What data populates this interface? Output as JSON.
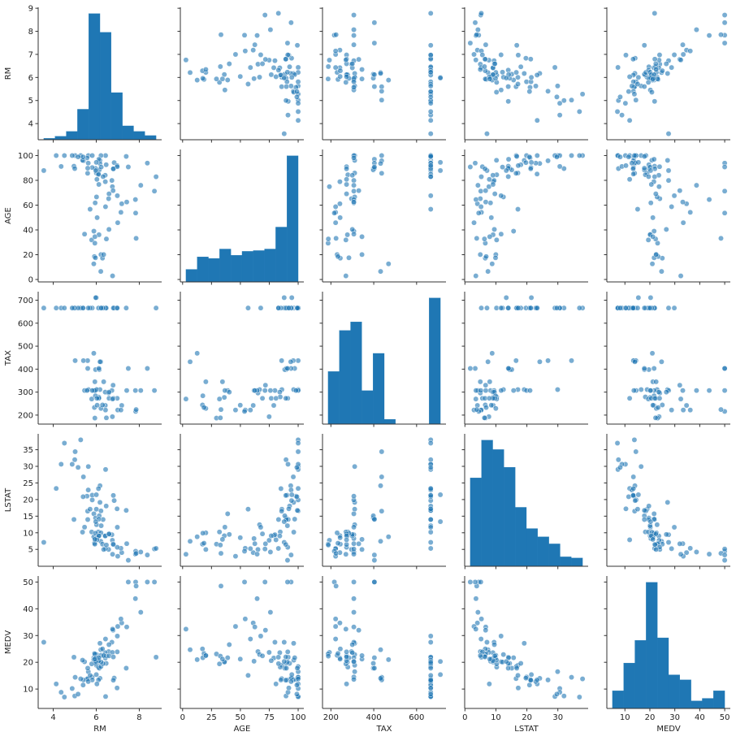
{
  "chart_data": {
    "type": "pairplot",
    "color": "#1f77b4",
    "variables": [
      {
        "name": "RM",
        "lim": [
          3.3,
          9.04
        ],
        "xticks": [
          4,
          6,
          8
        ],
        "yticks": [
          4,
          5,
          6,
          7,
          8,
          9
        ],
        "bins": [
          3.561,
          4.083,
          4.605,
          5.127,
          5.649,
          6.171,
          6.692,
          7.214,
          7.736,
          8.258,
          8.78
        ],
        "counts": [
          2,
          5,
          12,
          44,
          182,
          155,
          68,
          20,
          12,
          6
        ]
      },
      {
        "name": "AGE",
        "lim": [
          -1.96,
          104.9
        ],
        "xticks": [
          0,
          25,
          50,
          75,
          100
        ],
        "yticks": [
          0,
          20,
          40,
          60,
          80,
          100
        ],
        "bins": [
          2.9,
          12.61,
          22.32,
          32.03,
          41.74,
          51.45,
          61.16,
          70.87,
          80.58,
          90.29,
          100
        ],
        "counts": [
          16,
          32,
          30,
          42,
          34,
          39,
          40,
          42,
          70,
          161
        ]
      },
      {
        "name": "TAX",
        "lim": [
          160.8,
          737.2
        ],
        "xticks": [
          200,
          400,
          600
        ],
        "yticks": [
          200,
          300,
          400,
          500,
          600,
          700
        ],
        "bins": [
          187,
          239.4,
          291.8,
          344.2,
          396.6,
          449,
          501.4,
          553.8,
          606.2,
          658.6,
          711
        ],
        "counts": [
          55,
          98,
          107,
          35,
          74,
          5,
          0,
          0,
          0,
          132
        ]
      },
      {
        "name": "LSTAT",
        "lim": [
          -0.08,
          39.78
        ],
        "xticks": [
          0,
          10,
          20,
          30
        ],
        "yticks": [
          5,
          10,
          15,
          20,
          25,
          30,
          35
        ],
        "bins": [
          1.73,
          5.35,
          8.98,
          12.6,
          16.23,
          19.85,
          23.47,
          27.1,
          30.72,
          34.35,
          37.97
        ],
        "counts": [
          75,
          107,
          99,
          84,
          50,
          32,
          25,
          19,
          8,
          7
        ]
      },
      {
        "name": "MEDV",
        "lim": [
          2.75,
          52.25
        ],
        "xticks": [
          10,
          20,
          30,
          40,
          50
        ],
        "yticks": [
          10,
          20,
          30,
          40,
          50
        ],
        "bins": [
          5,
          9.5,
          14,
          18.5,
          23,
          27.5,
          32,
          36.5,
          41,
          45.5,
          50
        ],
        "counts": [
          21,
          54,
          81,
          150,
          84,
          40,
          34,
          9,
          12,
          21
        ]
      }
    ],
    "rows": [
      [
        6.575,
        65.2,
        296,
        4.98,
        24.0
      ],
      [
        6.421,
        78.9,
        242,
        9.14,
        21.6
      ],
      [
        7.185,
        61.1,
        242,
        4.03,
        34.7
      ],
      [
        6.998,
        45.8,
        222,
        2.94,
        33.4
      ],
      [
        7.147,
        54.2,
        222,
        5.33,
        36.2
      ],
      [
        6.43,
        58.7,
        222,
        5.21,
        28.7
      ],
      [
        6.012,
        66.6,
        311,
        12.43,
        22.9
      ],
      [
        6.172,
        96.1,
        311,
        19.15,
        27.1
      ],
      [
        5.631,
        100,
        311,
        29.93,
        16.5
      ],
      [
        6.004,
        85.9,
        311,
        17.1,
        18.9
      ],
      [
        5.889,
        39,
        307,
        15.71,
        21.7
      ],
      [
        5.949,
        61.8,
        307,
        8.26,
        20.4
      ],
      [
        5.456,
        36.6,
        307,
        11.69,
        20.2
      ],
      [
        5.813,
        100,
        307,
        19.88,
        14.5
      ],
      [
        5.57,
        98.1,
        307,
        21.02,
        13.6
      ],
      [
        6.727,
        79.9,
        307,
        9.42,
        27.5
      ],
      [
        6.096,
        84.5,
        279,
        10.26,
        18.2
      ],
      [
        5.966,
        89.6,
        398,
        14.44,
        19.6
      ],
      [
        6.14,
        88.4,
        398,
        15.12,
        17.8
      ],
      [
        5.599,
        85.7,
        437,
        16.51,
        13.9
      ],
      [
        5.019,
        100,
        437,
        34.41,
        14.4
      ],
      [
        5.403,
        95.8,
        437,
        26.82,
        13.4
      ],
      [
        6.211,
        6.5,
        432,
        7.44,
        24.7
      ],
      [
        6.174,
        93.6,
        432,
        24.16,
        14.0
      ],
      [
        7.831,
        53.6,
        216,
        4.45,
        50.0
      ],
      [
        8.069,
        76,
        307,
        4.21,
        38.7
      ],
      [
        7.82,
        64.5,
        307,
        3.57,
        43.8
      ],
      [
        7.416,
        62.5,
        307,
        6.72,
        33.2
      ],
      [
        8.704,
        71.3,
        307,
        5.12,
        50.0
      ],
      [
        6.416,
        84.1,
        300,
        9.04,
        23.6
      ],
      [
        6.75,
        74.9,
        193,
        7.74,
        23.7
      ],
      [
        7.853,
        33.2,
        224,
        3.81,
        48.5
      ],
      [
        5.885,
        12.6,
        469,
        8.79,
        21.0
      ],
      [
        6.219,
        20.1,
        229,
        9.98,
        22.6
      ],
      [
        6.29,
        17.2,
        244,
        6.57,
        25.0
      ],
      [
        5.914,
        18.5,
        233,
        6.86,
        23.3
      ],
      [
        6.041,
        49.9,
        243,
        8.52,
        21.2
      ],
      [
        6.127,
        36.1,
        277,
        9.09,
        20.1
      ],
      [
        5.787,
        31.9,
        270,
        10.24,
        19.4
      ],
      [
        5.935,
        29.3,
        187,
        6.58,
        23.1
      ],
      [
        6.471,
        32.7,
        188,
        6.31,
        22.3
      ],
      [
        6.59,
        40.4,
        300,
        9.5,
        26.6
      ],
      [
        6.782,
        71.7,
        330,
        6.68,
        32.0
      ],
      [
        5.961,
        17.5,
        284,
        9.88,
        21.7
      ],
      [
        8.78,
        82.9,
        666,
        5.29,
        21.9
      ],
      [
        3.561,
        87.9,
        666,
        7.12,
        27.5
      ],
      [
        4.963,
        91.4,
        666,
        14.0,
        21.9
      ],
      [
        5.362,
        96.2,
        666,
        10.19,
        20.8
      ],
      [
        6.833,
        94.3,
        666,
        19.69,
        14.1
      ],
      [
        5.0,
        89.5,
        666,
        31.99,
        7.4
      ],
      [
        4.88,
        100,
        666,
        30.62,
        10.2
      ],
      [
        5.813,
        90.3,
        666,
        21.32,
        13.4
      ],
      [
        4.138,
        100,
        666,
        23.34,
        11.9
      ],
      [
        4.368,
        91.2,
        666,
        30.63,
        8.8
      ],
      [
        5.277,
        100,
        666,
        37.97,
        13.8
      ],
      [
        4.519,
        100,
        666,
        36.98,
        7.0
      ],
      [
        6.434,
        100,
        666,
        29.05,
        7.2
      ],
      [
        5.155,
        98.9,
        666,
        29.68,
        8.1
      ],
      [
        5.39,
        98.9,
        666,
        20.85,
        11.5
      ],
      [
        5.713,
        56.7,
        666,
        17.11,
        15.1
      ],
      [
        6.219,
        100,
        666,
        16.59,
        18.4
      ],
      [
        6.461,
        92.6,
        666,
        18.05,
        19.6
      ],
      [
        5.627,
        93.9,
        666,
        22.88,
        12.8
      ],
      [
        6.103,
        85.1,
        666,
        23.29,
        13.4
      ],
      [
        6.317,
        83.0,
        666,
        13.99,
        19.5
      ],
      [
        6.229,
        90.7,
        666,
        12.13,
        20.1
      ],
      [
        6.98,
        67.6,
        666,
        11.66,
        29.8
      ],
      [
        6.794,
        89.3,
        666,
        21.24,
        13.3
      ],
      [
        7.393,
        99.3,
        666,
        16.74,
        17.8
      ],
      [
        6.968,
        91.9,
        666,
        17.21,
        10.4
      ],
      [
        6.593,
        69.1,
        273,
        9.67,
        22.4
      ],
      [
        6.12,
        76.7,
        273,
        9.08,
        20.6
      ],
      [
        6.976,
        91,
        273,
        5.64,
        23.9
      ],
      [
        6.794,
        89.3,
        273,
        6.48,
        22.0
      ],
      [
        6.03,
        80.8,
        273,
        7.88,
        11.9
      ],
      [
        5.604,
        89.8,
        403,
        13.98,
        17.8
      ],
      [
        6.122,
        97.0,
        403,
        14.1,
        21.7
      ],
      [
        8.375,
        93.9,
        403,
        3.32,
        50.0
      ],
      [
        7.489,
        90.8,
        403,
        1.73,
        50.0
      ],
      [
        6.003,
        94.5,
        711,
        21.45,
        15.4
      ],
      [
        5.976,
        87.9,
        711,
        13.35,
        20.3
      ],
      [
        5.936,
        34.5,
        345,
        8.01,
        21.2
      ],
      [
        6.345,
        20.1,
        345,
        4.97,
        22.5
      ],
      [
        6.758,
        2.9,
        270,
        3.53,
        32.4
      ]
    ]
  }
}
